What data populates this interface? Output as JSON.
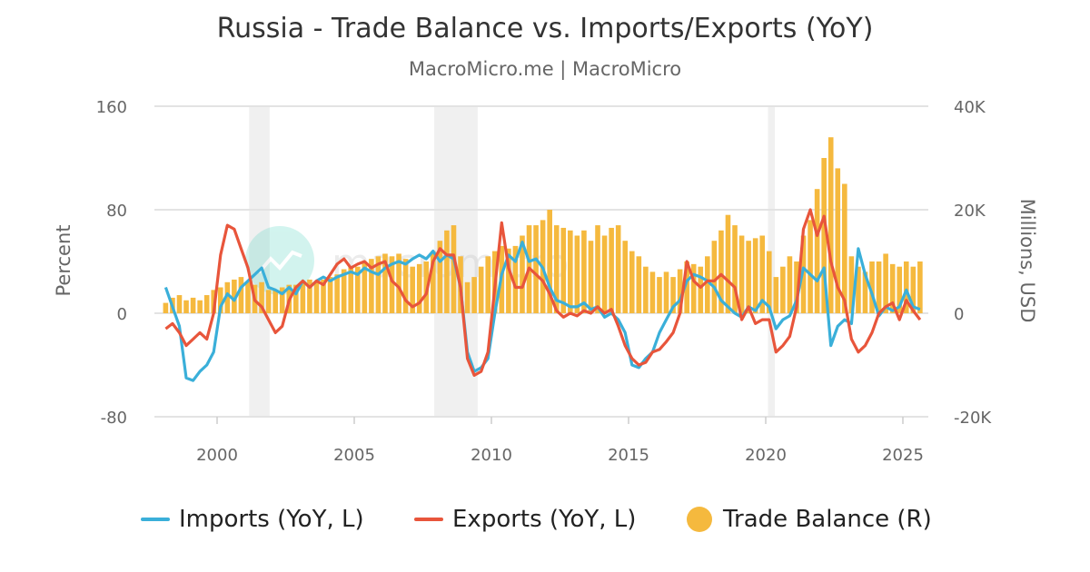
{
  "chart_data": {
    "type": "line+bar",
    "title": "Russia - Trade Balance vs. Imports/Exports (YoY)",
    "subtitle": "MacroMicro.me | MacroMicro",
    "watermark": "macromicro",
    "ylabel_left": "Percent",
    "ylabel_right": "Millions, USD",
    "ylim_left": [
      -80,
      160
    ],
    "ylim_right": [
      -20000,
      40000
    ],
    "yticks_left": [
      "-80",
      "0",
      "80",
      "160"
    ],
    "yticks_right": [
      "-20K",
      "0",
      "20K",
      "40K"
    ],
    "xticks": [
      "2000",
      "2005",
      "2010",
      "2015",
      "2020",
      "2025"
    ],
    "xlim": [
      "1998-01",
      "2025-12"
    ],
    "grid": "horizontal",
    "legend_position": "bottom",
    "shaded_periods": [
      [
        "2001-03",
        "2001-11"
      ],
      [
        "2007-12",
        "2009-06"
      ],
      [
        "2020-02",
        "2020-04"
      ]
    ],
    "colors": {
      "imports": "#3aafd9",
      "exports": "#e8553b",
      "trade_balance": "#f5b93e",
      "shade": "#f0f0f0"
    },
    "x": [
      "1998Q1",
      "1998Q2",
      "1998Q3",
      "1998Q4",
      "1999Q1",
      "1999Q2",
      "1999Q3",
      "1999Q4",
      "2000Q1",
      "2000Q2",
      "2000Q3",
      "2000Q4",
      "2001Q1",
      "2001Q2",
      "2001Q3",
      "2001Q4",
      "2002Q1",
      "2002Q2",
      "2002Q3",
      "2002Q4",
      "2003Q1",
      "2003Q2",
      "2003Q3",
      "2003Q4",
      "2004Q1",
      "2004Q2",
      "2004Q3",
      "2004Q4",
      "2005Q1",
      "2005Q2",
      "2005Q3",
      "2005Q4",
      "2006Q1",
      "2006Q2",
      "2006Q3",
      "2006Q4",
      "2007Q1",
      "2007Q2",
      "2007Q3",
      "2007Q4",
      "2008Q1",
      "2008Q2",
      "2008Q3",
      "2008Q4",
      "2009Q1",
      "2009Q2",
      "2009Q3",
      "2009Q4",
      "2010Q1",
      "2010Q2",
      "2010Q3",
      "2010Q4",
      "2011Q1",
      "2011Q2",
      "2011Q3",
      "2011Q4",
      "2012Q1",
      "2012Q2",
      "2012Q3",
      "2012Q4",
      "2013Q1",
      "2013Q2",
      "2013Q3",
      "2013Q4",
      "2014Q1",
      "2014Q2",
      "2014Q3",
      "2014Q4",
      "2015Q1",
      "2015Q2",
      "2015Q3",
      "2015Q4",
      "2016Q1",
      "2016Q2",
      "2016Q3",
      "2016Q4",
      "2017Q1",
      "2017Q2",
      "2017Q3",
      "2017Q4",
      "2018Q1",
      "2018Q2",
      "2018Q3",
      "2018Q4",
      "2019Q1",
      "2019Q2",
      "2019Q3",
      "2019Q4",
      "2020Q1",
      "2020Q2",
      "2020Q3",
      "2020Q4",
      "2021Q1",
      "2021Q2",
      "2021Q3",
      "2021Q4",
      "2022Q1",
      "2022Q2",
      "2022Q3",
      "2022Q4",
      "2023Q1",
      "2023Q2",
      "2023Q3",
      "2023Q4",
      "2024Q1",
      "2024Q2",
      "2024Q3",
      "2024Q4",
      "2025Q1",
      "2025Q2",
      "2025Q3"
    ],
    "series": [
      {
        "name": "Imports (YoY, L)",
        "axis": "left",
        "kind": "line",
        "values": [
          20,
          5,
          -10,
          -50,
          -52,
          -45,
          -40,
          -30,
          5,
          15,
          10,
          20,
          25,
          30,
          35,
          20,
          18,
          15,
          20,
          15,
          25,
          20,
          25,
          28,
          25,
          28,
          30,
          32,
          30,
          35,
          32,
          30,
          35,
          38,
          40,
          38,
          42,
          45,
          42,
          48,
          40,
          45,
          42,
          20,
          -30,
          -45,
          -42,
          -35,
          0,
          30,
          45,
          40,
          55,
          40,
          42,
          35,
          20,
          10,
          8,
          5,
          5,
          8,
          3,
          5,
          -3,
          0,
          -5,
          -15,
          -40,
          -42,
          -35,
          -30,
          -15,
          -5,
          5,
          10,
          25,
          30,
          28,
          25,
          20,
          10,
          5,
          0,
          -3,
          5,
          2,
          10,
          5,
          -12,
          -5,
          -2,
          10,
          35,
          30,
          25,
          35,
          -25,
          -10,
          -5,
          -8,
          50,
          30,
          15,
          -2,
          5,
          2,
          5,
          18,
          5,
          3
        ]
      },
      {
        "name": "Exports (YoY, L)",
        "axis": "left",
        "kind": "line",
        "values": [
          -12,
          -8,
          -15,
          -25,
          -20,
          -15,
          -20,
          0,
          45,
          68,
          65,
          50,
          35,
          10,
          5,
          -5,
          -15,
          -10,
          10,
          20,
          25,
          20,
          25,
          22,
          30,
          38,
          42,
          35,
          38,
          40,
          35,
          38,
          40,
          25,
          20,
          10,
          5,
          8,
          15,
          40,
          50,
          45,
          45,
          20,
          -35,
          -48,
          -45,
          -30,
          20,
          70,
          35,
          20,
          20,
          35,
          30,
          25,
          15,
          2,
          -3,
          0,
          -2,
          2,
          0,
          5,
          0,
          3,
          -10,
          -25,
          -35,
          -40,
          -38,
          -30,
          -28,
          -22,
          -15,
          0,
          40,
          25,
          20,
          25,
          25,
          30,
          25,
          20,
          -5,
          5,
          -8,
          -5,
          -5,
          -30,
          -25,
          -18,
          5,
          65,
          80,
          60,
          75,
          40,
          20,
          10,
          -20,
          -30,
          -25,
          -15,
          0,
          5,
          8,
          -5,
          10,
          2,
          -5
        ]
      },
      {
        "name": "Trade Balance (R)",
        "axis": "right",
        "kind": "bar",
        "values": [
          2000,
          3000,
          3500,
          2500,
          3000,
          2500,
          3500,
          4500,
          5000,
          6000,
          6500,
          7000,
          6000,
          5500,
          6000,
          4500,
          4500,
          5000,
          5500,
          5500,
          6000,
          6500,
          6000,
          6500,
          7000,
          7500,
          8500,
          9000,
          9000,
          10000,
          10500,
          11000,
          11500,
          11000,
          11500,
          10500,
          9000,
          9500,
          10000,
          12000,
          14000,
          16000,
          17000,
          11000,
          6000,
          7000,
          9000,
          11000,
          12000,
          13000,
          12500,
          13000,
          15000,
          17000,
          17000,
          18000,
          20000,
          17000,
          16500,
          16000,
          15000,
          16000,
          14000,
          17000,
          15000,
          16500,
          17000,
          14000,
          12000,
          11000,
          9000,
          8000,
          7000,
          8000,
          7000,
          8500,
          10000,
          9500,
          9000,
          11000,
          14000,
          16000,
          19000,
          17000,
          15000,
          14000,
          14500,
          15000,
          12000,
          7000,
          9000,
          11000,
          10000,
          15000,
          18000,
          24000,
          30000,
          34000,
          28000,
          25000,
          11000,
          9000,
          8000,
          10000,
          10000,
          11500,
          9500,
          9000,
          10000,
          9000,
          10000
        ]
      }
    ]
  }
}
